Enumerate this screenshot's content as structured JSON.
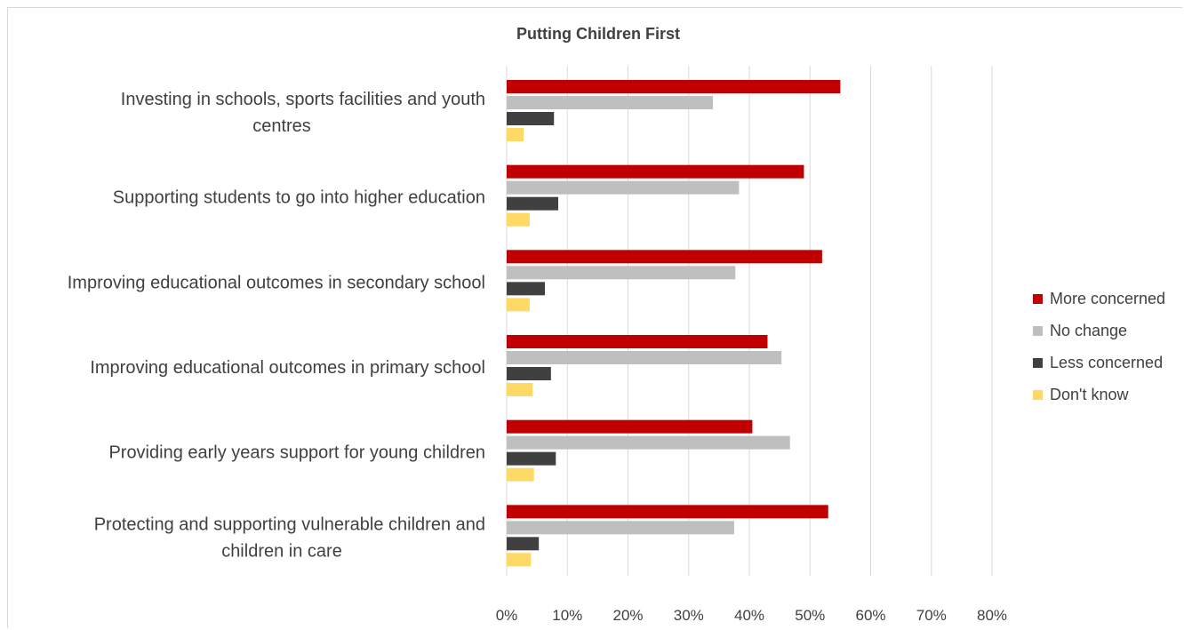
{
  "chart_data": {
    "type": "bar",
    "orientation": "horizontal",
    "title": "Putting Children First",
    "categories": [
      "Investing in schools, sports facilities and youth centres",
      "Supporting students to go into higher education",
      "Improving educational outcomes in secondary school",
      "Improving educational outcomes in primary school",
      "Providing early years support for young children",
      "Protecting and supporting vulnerable children and children in care"
    ],
    "category_lines": [
      [
        "Investing in schools, sports facilities and youth",
        "centres"
      ],
      [
        "Supporting students to go into higher education"
      ],
      [
        "Improving educational outcomes in secondary school"
      ],
      [
        "Improving educational outcomes in primary school"
      ],
      [
        "Providing early years support for young children"
      ],
      [
        "Protecting and supporting vulnerable children and",
        "children in care"
      ]
    ],
    "series": [
      {
        "name": "More concerned",
        "color": "#c00000",
        "values": [
          55,
          49,
          52,
          43,
          40.5,
          53
        ]
      },
      {
        "name": "No change",
        "color": "#bfbfbf",
        "values": [
          34,
          38.3,
          37.7,
          45.3,
          46.7,
          37.5
        ]
      },
      {
        "name": "Less concerned",
        "color": "#404040",
        "values": [
          7.8,
          8.5,
          6.3,
          7.3,
          8.1,
          5.3
        ]
      },
      {
        "name": "Don't know",
        "color": "#ffd966",
        "values": [
          2.8,
          3.8,
          3.8,
          4.3,
          4.5,
          4
        ]
      }
    ],
    "xlim": [
      0,
      80
    ],
    "xticks": [
      "0%",
      "10%",
      "20%",
      "30%",
      "40%",
      "50%",
      "60%",
      "70%",
      "80%"
    ],
    "grid": true,
    "legend_position": "right"
  }
}
